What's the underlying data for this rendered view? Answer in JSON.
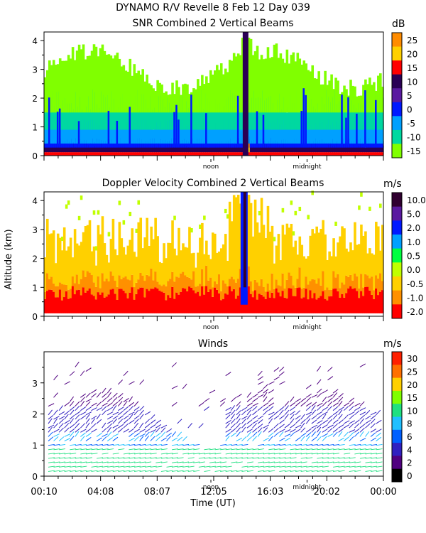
{
  "header": {
    "title": "DYNAMO R/V Revelle    8 Feb 12 Day 039"
  },
  "shared_axes": {
    "ylabel": "Altitude (km)",
    "xlabel": "Time (UT)",
    "time_ticks": [
      "00:10",
      "04:08",
      "08:07",
      "12:05",
      "16:03",
      "20:02",
      "00:00"
    ],
    "day_markers": [
      "noon",
      "midnight"
    ]
  },
  "chart_data": [
    {
      "type": "heatmap",
      "title": "SNR Combined 2 Vertical Beams",
      "unit": "dB",
      "xlim": [
        0,
        24
      ],
      "ylim": [
        0,
        4.3
      ],
      "yticks": [
        "0",
        "1",
        "2",
        "3",
        "4"
      ],
      "colorbar": {
        "labels": [
          "25",
          "20",
          "15",
          "10",
          "5",
          "0",
          "-5",
          "-10",
          "-15"
        ],
        "colors": [
          "#ff8c00",
          "#ffd000",
          "#ff0000",
          "#2a0055",
          "#5a1aa0",
          "#0018ff",
          "#00a0ff",
          "#00d8a0",
          "#80ff00"
        ]
      }
    },
    {
      "type": "heatmap",
      "title": "Doppler Velocity Combined 2 Vertical Beams",
      "unit": "m/s",
      "xlim": [
        0,
        24
      ],
      "ylim": [
        0,
        4.3
      ],
      "yticks": [
        "0",
        "1",
        "2",
        "3",
        "4"
      ],
      "colorbar": {
        "labels": [
          "10.0",
          "5.0",
          "2.0",
          "1.0",
          "0.5",
          "0.0",
          "-0.5",
          "-1.0",
          "-2.0"
        ],
        "colors": [
          "#300030",
          "#5a1aa0",
          "#0018ff",
          "#00a0ff",
          "#00ff40",
          "#c0ff00",
          "#ffd000",
          "#ff9000",
          "#ff0000"
        ]
      }
    },
    {
      "type": "scatter",
      "title": "Winds",
      "unit": "m/s",
      "xlim": [
        0,
        24
      ],
      "ylim": [
        0,
        4
      ],
      "yticks": [
        "0",
        "1",
        "2",
        "3"
      ],
      "colorbar": {
        "labels": [
          "30",
          "25",
          "20",
          "15",
          "10",
          "8",
          "6",
          "4",
          "2",
          "0"
        ],
        "colors": [
          "#ff2000",
          "#ff7000",
          "#ffd000",
          "#80ff00",
          "#20e080",
          "#20c0ff",
          "#0060ff",
          "#3020c0",
          "#500080",
          "#000000"
        ]
      }
    }
  ]
}
